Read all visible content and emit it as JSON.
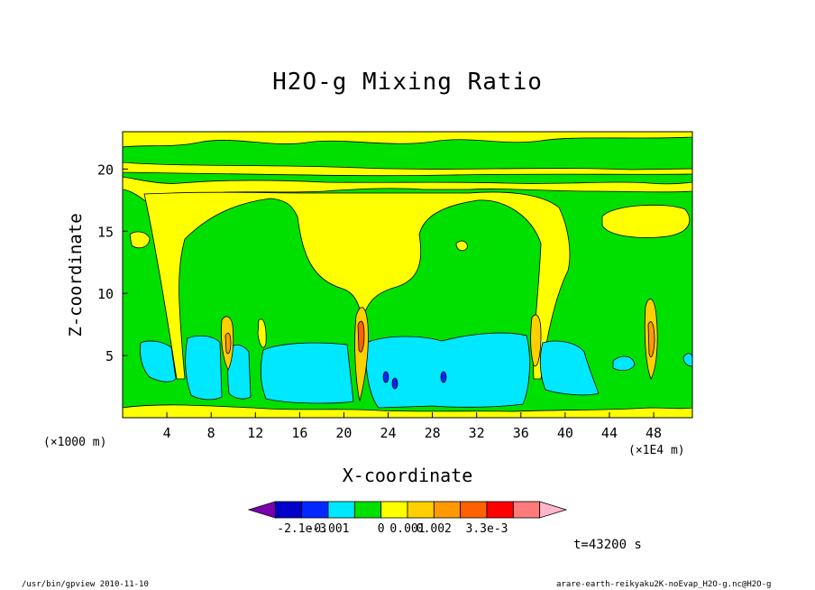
{
  "chart_data": {
    "type": "heatmap",
    "title": "H2O-g Mixing Ratio",
    "xlabel": "X-coordinate",
    "ylabel": "Z-coordinate",
    "x_unit_note": "(×1000 m)",
    "x_scale_note": "(×1E4 m)",
    "xlim": [
      0,
      51.5
    ],
    "ylim": [
      0,
      23
    ],
    "x_ticks": [
      "4",
      "8",
      "12",
      "16",
      "20",
      "24",
      "28",
      "32",
      "36",
      "40",
      "44",
      "48"
    ],
    "y_ticks": [
      "5",
      "10",
      "15",
      "20"
    ],
    "colorbar": {
      "labels": [
        "-2.1e-3",
        "-0.001",
        "0",
        "0.001",
        "0.002",
        "3.3e-3"
      ],
      "colors": [
        "#7a00b0",
        "#0000c8",
        "#0028ff",
        "#00e8ff",
        "#00e000",
        "#ffff00",
        "#ffd000",
        "#ff9a00",
        "#ff6000",
        "#ff0000",
        "#ff7a7a",
        "#ffb8c8"
      ]
    },
    "dominant_fields": [
      {
        "region": "near-surface band",
        "z_range": [
          0,
          1.2
        ],
        "value_class": "0 to 0.001"
      },
      {
        "region": "low-level moist layer",
        "z_range": [
          1.2,
          6.3
        ],
        "value_class": "-0.001 to 0"
      },
      {
        "region": "mid troposphere",
        "z_range": [
          6,
          17.5
        ],
        "value_class": "-0.001 to 0 / 0 to 0.001"
      },
      {
        "region": "upper layers",
        "z_range": [
          18,
          23
        ],
        "value_class": "0 to 0.001"
      }
    ],
    "hotspots": [
      {
        "x": 9.5,
        "z": 5.5,
        "value_class": "0.001 to 0.002"
      },
      {
        "x": 21.5,
        "z": 6.5,
        "value_class": "0.001 to 0.002"
      },
      {
        "x": 37.0,
        "z": 5.0,
        "value_class": "0.001 to 0.002"
      },
      {
        "x": 47.5,
        "z": 6.0,
        "value_class": "0.001 to 0.002"
      }
    ],
    "minima": [
      {
        "x": 24.4,
        "z": 2.8
      },
      {
        "x": 29.5,
        "z": 3.2
      }
    ]
  },
  "annotations": {
    "time": "t=43200 s",
    "footer_left": "/usr/bin/gpview  2010-11-10",
    "footer_right": "arare-earth-reikyaku2K-noEvap_H2O-g.nc@H2O-g"
  }
}
